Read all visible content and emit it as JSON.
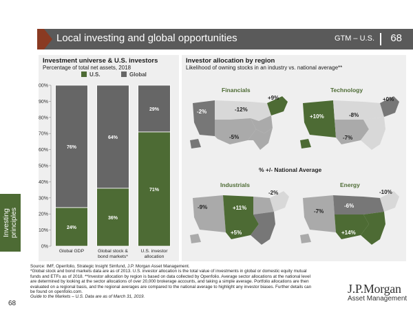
{
  "header": {
    "title": "Local investing and global opportunities",
    "gtm": "GTM – U.S.",
    "page": "68"
  },
  "side_tab": {
    "label": "Investing principles"
  },
  "page_number_bottom": "68",
  "left_panel": {
    "title": "Investment universe & U.S. investors",
    "subtitle": "Percentage of total net assets, 2018"
  },
  "right_panel": {
    "title": "Investor allocation by region",
    "subtitle": "Likelihood of owning stocks in an industry vs. national average**",
    "center_legend": "% +/- National Average",
    "maps": [
      {
        "title": "Financials",
        "labels": [
          "+9%",
          "-2%",
          "-12%",
          "-5%"
        ]
      },
      {
        "title": "Technology",
        "labels": [
          "+0%",
          "+10%",
          "-8%",
          "-7%"
        ]
      },
      {
        "title": "Industrials",
        "labels": [
          "-2%",
          "-9%",
          "+11%",
          "+5%"
        ]
      },
      {
        "title": "Energy",
        "labels": [
          "-10%",
          "-7%",
          "-6%",
          "+14%"
        ]
      }
    ]
  },
  "colors": {
    "us": "#4d6b34",
    "global": "#666666",
    "accent": "#8a3a22",
    "header": "#5a5a5a"
  },
  "chart_data": {
    "type": "bar",
    "stacked": true,
    "categories": [
      "Global GDP",
      "Global stock & bond markets*",
      "U.S. investor allocation"
    ],
    "series": [
      {
        "name": "U.S.",
        "values": [
          24,
          36,
          71
        ],
        "labels": [
          "24%",
          "36%",
          "71%"
        ]
      },
      {
        "name": "Global",
        "values": [
          76,
          64,
          29
        ],
        "labels": [
          "76%",
          "64%",
          "29%"
        ]
      }
    ],
    "ylim": [
      0,
      100
    ],
    "yticks": [
      "0%",
      "10%",
      "20%",
      "30%",
      "40%",
      "50%",
      "60%",
      "70%",
      "80%",
      "90%",
      "100%"
    ],
    "legend_position": "top"
  },
  "footer": {
    "line1": "Source: IMF, Openfolio, Strategic Insight Simfund, J.P. Morgan Asset Management.",
    "line2": "*Global stock and bond markets data are as of 2013. U.S. investor allocation is the total value of investments in global or domestic equity mutual funds and ETFs as of 2018. **Investor allocation by region is based on data collected by Openfolio. Average sector allocations at the national level are determined by looking at the sector allocations of over 20,000 brokerage accounts, and taking a simple average. Portfolio allocations are then evaluated on a regional basis, and the regional averages are compared to the national average to highlight any investor biases. Further details can be found on openfolio.com.",
    "line3": "Guide to the Markets – U.S. Data are as of March 31, 2019."
  },
  "logo": {
    "main": "J.P.Morgan",
    "sub": "Asset Management"
  }
}
